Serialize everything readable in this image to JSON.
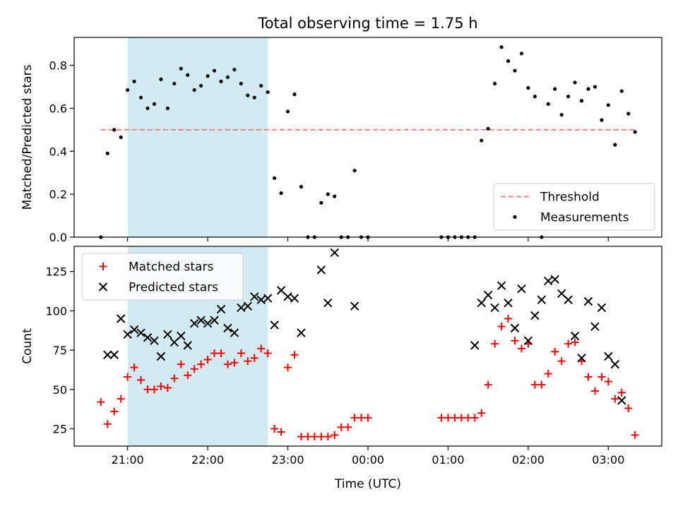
{
  "chart_data": {
    "title": "Total observing time = 1.75 h",
    "xlabel": "Time (UTC)",
    "x_ticks": [
      "21:00",
      "22:00",
      "23:00",
      "00:00",
      "01:00",
      "02:00",
      "03:00"
    ],
    "x_range": [
      "20:20",
      "03:40"
    ],
    "shaded_span": [
      "21:00",
      "22:45"
    ],
    "shaded_color": "#add8e6",
    "panels": [
      {
        "type": "scatter",
        "ylabel": "Matched/Predicted stars",
        "ylim": [
          0,
          0.93
        ],
        "y_ticks": [
          "0.0",
          "0.2",
          "0.4",
          "0.6",
          "0.8"
        ],
        "legend_position": "bottom-right",
        "threshold": {
          "name": "Threshold",
          "value": 0.5,
          "x_start": "20:40",
          "x_end": "03:20",
          "color": "#ff7f7f",
          "style": "dashed"
        },
        "series": [
          {
            "name": "Measurements",
            "color": "#000000",
            "marker": "dot",
            "points": [
              [
                "20:40",
                0.0
              ],
              [
                "20:45",
                0.39
              ],
              [
                "20:50",
                0.5
              ],
              [
                "20:55",
                0.465
              ],
              [
                "21:00",
                0.685
              ],
              [
                "21:05",
                0.725
              ],
              [
                "21:10",
                0.65
              ],
              [
                "21:15",
                0.6
              ],
              [
                "21:20",
                0.62
              ],
              [
                "21:25",
                0.735
              ],
              [
                "21:30",
                0.6
              ],
              [
                "21:35",
                0.715
              ],
              [
                "21:40",
                0.785
              ],
              [
                "21:45",
                0.755
              ],
              [
                "21:50",
                0.685
              ],
              [
                "21:55",
                0.705
              ],
              [
                "22:00",
                0.75
              ],
              [
                "22:05",
                0.775
              ],
              [
                "22:10",
                0.725
              ],
              [
                "22:15",
                0.745
              ],
              [
                "22:20",
                0.78
              ],
              [
                "22:25",
                0.715
              ],
              [
                "22:30",
                0.66
              ],
              [
                "22:35",
                0.65
              ],
              [
                "22:40",
                0.705
              ],
              [
                "22:45",
                0.675
              ],
              [
                "22:50",
                0.275
              ],
              [
                "22:55",
                0.205
              ],
              [
                "23:00",
                0.585
              ],
              [
                "23:05",
                0.665
              ],
              [
                "23:10",
                0.235
              ],
              [
                "23:15",
                0.0
              ],
              [
                "23:20",
                0.0
              ],
              [
                "23:25",
                0.16
              ],
              [
                "23:30",
                0.2
              ],
              [
                "23:35",
                0.19
              ],
              [
                "23:40",
                0.0
              ],
              [
                "23:45",
                0.0
              ],
              [
                "23:50",
                0.31
              ],
              [
                "23:55",
                0.0
              ],
              [
                "00:00",
                0.0
              ],
              [
                "00:55",
                0.0
              ],
              [
                "01:00",
                0.0
              ],
              [
                "01:05",
                0.0
              ],
              [
                "01:10",
                0.0
              ],
              [
                "01:15",
                0.0
              ],
              [
                "01:20",
                0.0
              ],
              [
                "01:25",
                0.45
              ],
              [
                "01:30",
                0.505
              ],
              [
                "01:35",
                0.715
              ],
              [
                "01:40",
                0.885
              ],
              [
                "01:45",
                0.82
              ],
              [
                "01:50",
                0.775
              ],
              [
                "01:55",
                0.855
              ],
              [
                "02:00",
                0.695
              ],
              [
                "02:05",
                0.655
              ],
              [
                "02:10",
                0.0
              ],
              [
                "02:15",
                0.62
              ],
              [
                "02:20",
                0.69
              ],
              [
                "02:25",
                0.57
              ],
              [
                "02:30",
                0.655
              ],
              [
                "02:35",
                0.72
              ],
              [
                "02:40",
                0.635
              ],
              [
                "02:45",
                0.69
              ],
              [
                "02:50",
                0.7
              ],
              [
                "02:55",
                0.545
              ],
              [
                "03:00",
                0.615
              ],
              [
                "03:05",
                0.43
              ],
              [
                "03:10",
                0.68
              ],
              [
                "03:15",
                0.575
              ],
              [
                "03:20",
                0.49
              ]
            ]
          }
        ]
      },
      {
        "type": "scatter",
        "ylabel": "Count",
        "ylim": [
          14,
          141
        ],
        "y_ticks": [
          "25",
          "50",
          "75",
          "100",
          "125"
        ],
        "legend_position": "top-left",
        "series": [
          {
            "name": "Matched stars",
            "color": "#ff0000",
            "marker": "plus",
            "points": [
              [
                "20:40",
                42
              ],
              [
                "20:45",
                28
              ],
              [
                "20:50",
                36
              ],
              [
                "20:55",
                44
              ],
              [
                "21:00",
                58
              ],
              [
                "21:05",
                64
              ],
              [
                "21:10",
                56
              ],
              [
                "21:15",
                50
              ],
              [
                "21:20",
                50
              ],
              [
                "21:25",
                52
              ],
              [
                "21:30",
                51
              ],
              [
                "21:35",
                57
              ],
              [
                "21:40",
                66
              ],
              [
                "21:45",
                59
              ],
              [
                "21:50",
                63
              ],
              [
                "21:55",
                66
              ],
              [
                "22:00",
                69
              ],
              [
                "22:05",
                73
              ],
              [
                "22:10",
                73
              ],
              [
                "22:15",
                66
              ],
              [
                "22:20",
                67
              ],
              [
                "22:25",
                73
              ],
              [
                "22:30",
                68
              ],
              [
                "22:35",
                70
              ],
              [
                "22:40",
                76
              ],
              [
                "22:45",
                73
              ],
              [
                "22:50",
                25
              ],
              [
                "22:55",
                23
              ],
              [
                "23:00",
                64
              ],
              [
                "23:05",
                72
              ],
              [
                "23:10",
                20
              ],
              [
                "23:15",
                20
              ],
              [
                "23:20",
                20
              ],
              [
                "23:25",
                20
              ],
              [
                "23:30",
                20
              ],
              [
                "23:35",
                21
              ],
              [
                "23:40",
                26
              ],
              [
                "23:45",
                26
              ],
              [
                "23:50",
                32
              ],
              [
                "23:55",
                32
              ],
              [
                "00:00",
                32
              ],
              [
                "00:55",
                32
              ],
              [
                "01:00",
                32
              ],
              [
                "01:05",
                32
              ],
              [
                "01:10",
                32
              ],
              [
                "01:15",
                32
              ],
              [
                "01:20",
                32
              ],
              [
                "01:25",
                35
              ],
              [
                "01:30",
                53
              ],
              [
                "01:35",
                79
              ],
              [
                "01:40",
                90
              ],
              [
                "01:45",
                95
              ],
              [
                "01:50",
                81
              ],
              [
                "01:55",
                76
              ],
              [
                "02:00",
                79
              ],
              [
                "02:05",
                53
              ],
              [
                "02:10",
                53
              ],
              [
                "02:15",
                60
              ],
              [
                "02:20",
                74
              ],
              [
                "02:25",
                68
              ],
              [
                "02:30",
                79
              ],
              [
                "02:35",
                80
              ],
              [
                "02:40",
                68
              ],
              [
                "02:45",
                58
              ],
              [
                "02:50",
                49
              ],
              [
                "02:55",
                58
              ],
              [
                "03:00",
                55
              ],
              [
                "03:05",
                44
              ],
              [
                "03:10",
                48
              ],
              [
                "03:15",
                38
              ],
              [
                "03:20",
                21
              ]
            ]
          },
          {
            "name": "Predicted stars",
            "color": "#000000",
            "marker": "x",
            "points": [
              [
                "20:45",
                72
              ],
              [
                "20:50",
                72
              ],
              [
                "20:55",
                95
              ],
              [
                "21:00",
                85
              ],
              [
                "21:05",
                88
              ],
              [
                "21:10",
                86
              ],
              [
                "21:15",
                83
              ],
              [
                "21:20",
                81
              ],
              [
                "21:25",
                71
              ],
              [
                "21:30",
                85
              ],
              [
                "21:35",
                80
              ],
              [
                "21:40",
                84
              ],
              [
                "21:45",
                78
              ],
              [
                "21:50",
                92
              ],
              [
                "21:55",
                94
              ],
              [
                "22:00",
                92
              ],
              [
                "22:05",
                94
              ],
              [
                "22:10",
                101
              ],
              [
                "22:15",
                89
              ],
              [
                "22:20",
                86
              ],
              [
                "22:25",
                102
              ],
              [
                "22:30",
                103
              ],
              [
                "22:35",
                109
              ],
              [
                "22:40",
                107
              ],
              [
                "22:45",
                108
              ],
              [
                "22:50",
                91
              ],
              [
                "22:55",
                113
              ],
              [
                "23:00",
                109
              ],
              [
                "23:05",
                108
              ],
              [
                "23:10",
                86
              ],
              [
                "23:25",
                126
              ],
              [
                "23:30",
                105
              ],
              [
                "23:35",
                137
              ],
              [
                "23:50",
                103
              ],
              [
                "01:20",
                78
              ],
              [
                "01:25",
                105
              ],
              [
                "01:30",
                110
              ],
              [
                "01:35",
                102
              ],
              [
                "01:40",
                116
              ],
              [
                "01:45",
                105
              ],
              [
                "01:50",
                89
              ],
              [
                "01:55",
                114
              ],
              [
                "02:00",
                81
              ],
              [
                "02:05",
                97
              ],
              [
                "02:10",
                107
              ],
              [
                "02:15",
                119
              ],
              [
                "02:20",
                120
              ],
              [
                "02:25",
                111
              ],
              [
                "02:30",
                107
              ],
              [
                "02:35",
                84
              ],
              [
                "02:40",
                70
              ],
              [
                "02:45",
                106
              ],
              [
                "02:50",
                90
              ],
              [
                "02:55",
                102
              ],
              [
                "03:00",
                71
              ],
              [
                "03:05",
                66
              ],
              [
                "03:10",
                43
              ]
            ]
          }
        ]
      }
    ]
  }
}
